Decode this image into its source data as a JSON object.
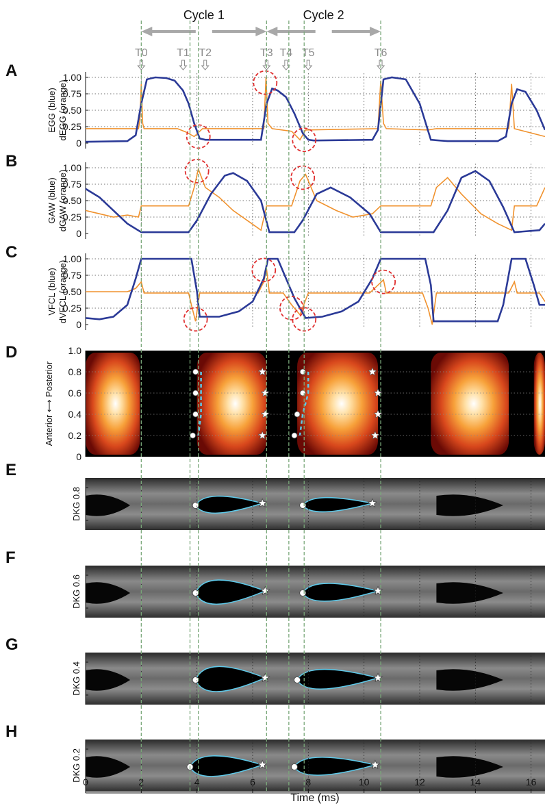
{
  "chart_data": {
    "type": "line",
    "xlabel": "Time (ms)",
    "x_ticks": [
      "0",
      "2",
      "4",
      "6",
      "8",
      "10",
      "12",
      "14",
      "16"
    ],
    "xlim": [
      0,
      16.5
    ],
    "cycles": [
      {
        "label": "Cycle 1",
        "from": 2.0,
        "to": 6.5
      },
      {
        "label": "Cycle 2",
        "from": 6.5,
        "to": 10.6
      }
    ],
    "time_markers": [
      {
        "label": "T0",
        "t": 2.0
      },
      {
        "label": "T1",
        "t": 3.75
      },
      {
        "label": "T2",
        "t": 4.05
      },
      {
        "label": "T3",
        "t": 6.5
      },
      {
        "label": "T4",
        "t": 7.3
      },
      {
        "label": "T5",
        "t": 7.85
      },
      {
        "label": "T6",
        "t": 10.6
      }
    ],
    "panels": [
      {
        "letter": "A",
        "ylabel_top": "EGG (blue)",
        "ylabel_bottom": "dEGG (orange)",
        "yticks": [
          "1.00",
          "0.75",
          "0.50",
          "0.25",
          "0"
        ],
        "ylim": [
          0,
          1
        ],
        "blue_colour": "#2b3a97",
        "orange_colour": "#f0922e",
        "blue": [
          [
            0,
            0.02
          ],
          [
            1.5,
            0.03
          ],
          [
            1.8,
            0.12
          ],
          [
            2.0,
            0.6
          ],
          [
            2.2,
            0.97
          ],
          [
            2.5,
            1.0
          ],
          [
            2.9,
            0.99
          ],
          [
            3.2,
            0.95
          ],
          [
            3.5,
            0.8
          ],
          [
            3.7,
            0.6
          ],
          [
            3.9,
            0.3
          ],
          [
            4.1,
            0.07
          ],
          [
            4.3,
            0.05
          ],
          [
            6.3,
            0.05
          ],
          [
            6.5,
            0.6
          ],
          [
            6.7,
            0.83
          ],
          [
            6.9,
            0.8
          ],
          [
            7.2,
            0.7
          ],
          [
            7.5,
            0.45
          ],
          [
            7.8,
            0.15
          ],
          [
            8.0,
            0.05
          ],
          [
            8.2,
            0.04
          ],
          [
            10.3,
            0.05
          ],
          [
            10.5,
            0.2
          ],
          [
            10.7,
            0.97
          ],
          [
            11.0,
            1.0
          ],
          [
            11.5,
            0.97
          ],
          [
            12.0,
            0.6
          ],
          [
            12.4,
            0.05
          ],
          [
            13.0,
            0.03
          ],
          [
            14.8,
            0.03
          ],
          [
            15.1,
            0.1
          ],
          [
            15.3,
            0.6
          ],
          [
            15.5,
            0.82
          ],
          [
            15.8,
            0.78
          ],
          [
            16.2,
            0.5
          ],
          [
            16.5,
            0.2
          ]
        ],
        "orange": [
          [
            0,
            0.22
          ],
          [
            1.9,
            0.22
          ],
          [
            1.95,
            0.35
          ],
          [
            2.0,
            0.9
          ],
          [
            2.05,
            0.3
          ],
          [
            2.1,
            0.22
          ],
          [
            3.3,
            0.22
          ],
          [
            3.6,
            0.17
          ],
          [
            3.9,
            0.1
          ],
          [
            4.2,
            0.22
          ],
          [
            6.4,
            0.22
          ],
          [
            6.48,
            1.0
          ],
          [
            6.55,
            0.3
          ],
          [
            6.7,
            0.22
          ],
          [
            7.4,
            0.18
          ],
          [
            7.7,
            0.05
          ],
          [
            7.9,
            0.2
          ],
          [
            10.5,
            0.22
          ],
          [
            10.6,
            0.95
          ],
          [
            10.7,
            0.3
          ],
          [
            10.8,
            0.22
          ],
          [
            12.3,
            0.2
          ],
          [
            12.6,
            0.22
          ],
          [
            15.2,
            0.22
          ],
          [
            15.3,
            0.9
          ],
          [
            15.4,
            0.22
          ],
          [
            16.5,
            0.1
          ]
        ],
        "highlights": [
          {
            "t": 4.05,
            "y": 0.1
          },
          {
            "t": 6.45,
            "y": 0.92
          },
          {
            "t": 7.85,
            "y": 0.05
          }
        ]
      },
      {
        "letter": "B",
        "ylabel_top": "GAW (blue)",
        "ylabel_bottom": "dGAW (orange)",
        "yticks": [
          "1.00",
          "0.75",
          "0.50",
          "0.25",
          "0"
        ],
        "ylim": [
          0,
          1
        ],
        "blue_colour": "#2b3a97",
        "orange_colour": "#f0922e",
        "blue": [
          [
            0,
            0.68
          ],
          [
            0.5,
            0.55
          ],
          [
            1.0,
            0.35
          ],
          [
            1.5,
            0.15
          ],
          [
            2.0,
            0.02
          ],
          [
            3.7,
            0.02
          ],
          [
            4.0,
            0.2
          ],
          [
            4.5,
            0.6
          ],
          [
            5.0,
            0.88
          ],
          [
            5.3,
            0.92
          ],
          [
            5.8,
            0.8
          ],
          [
            6.3,
            0.5
          ],
          [
            6.6,
            0.02
          ],
          [
            7.5,
            0.02
          ],
          [
            7.8,
            0.2
          ],
          [
            8.3,
            0.6
          ],
          [
            8.8,
            0.7
          ],
          [
            9.5,
            0.55
          ],
          [
            10.2,
            0.3
          ],
          [
            10.6,
            0.02
          ],
          [
            12.5,
            0.02
          ],
          [
            13.0,
            0.35
          ],
          [
            13.5,
            0.85
          ],
          [
            14.0,
            0.95
          ],
          [
            14.5,
            0.8
          ],
          [
            15.0,
            0.4
          ],
          [
            15.4,
            0.02
          ],
          [
            16.3,
            0.05
          ],
          [
            16.5,
            0.15
          ]
        ],
        "orange": [
          [
            0,
            0.35
          ],
          [
            0.5,
            0.3
          ],
          [
            1.0,
            0.25
          ],
          [
            1.5,
            0.28
          ],
          [
            1.9,
            0.25
          ],
          [
            2.0,
            0.42
          ],
          [
            3.7,
            0.42
          ],
          [
            3.9,
            0.7
          ],
          [
            4.05,
            0.98
          ],
          [
            4.3,
            0.7
          ],
          [
            4.8,
            0.55
          ],
          [
            5.3,
            0.35
          ],
          [
            5.8,
            0.2
          ],
          [
            6.3,
            0.05
          ],
          [
            6.5,
            0.42
          ],
          [
            7.4,
            0.42
          ],
          [
            7.7,
            0.8
          ],
          [
            7.9,
            0.9
          ],
          [
            8.3,
            0.5
          ],
          [
            9.0,
            0.35
          ],
          [
            9.6,
            0.25
          ],
          [
            10.3,
            0.3
          ],
          [
            10.6,
            0.42
          ],
          [
            12.4,
            0.42
          ],
          [
            12.6,
            0.7
          ],
          [
            13.0,
            0.85
          ],
          [
            13.5,
            0.6
          ],
          [
            14.2,
            0.3
          ],
          [
            14.8,
            0.15
          ],
          [
            15.3,
            0.05
          ],
          [
            15.4,
            0.42
          ],
          [
            16.2,
            0.42
          ],
          [
            16.5,
            0.7
          ]
        ],
        "highlights": [
          {
            "t": 4.0,
            "y": 0.95
          },
          {
            "t": 7.8,
            "y": 0.85
          }
        ]
      },
      {
        "letter": "C",
        "ylabel_top": "VFCL (blue)",
        "ylabel_bottom": "dVFCL (orange)",
        "yticks": [
          "1.00",
          "0.75",
          "0.50",
          "0.25",
          "0"
        ],
        "ylim": [
          0,
          1
        ],
        "blue_colour": "#2b3a97",
        "orange_colour": "#f0922e",
        "blue": [
          [
            0,
            0.1
          ],
          [
            0.5,
            0.08
          ],
          [
            1.0,
            0.12
          ],
          [
            1.5,
            0.3
          ],
          [
            1.8,
            0.7
          ],
          [
            2.0,
            1.0
          ],
          [
            3.8,
            1.0
          ],
          [
            4.0,
            0.5
          ],
          [
            4.1,
            0.12
          ],
          [
            4.8,
            0.12
          ],
          [
            5.5,
            0.2
          ],
          [
            6.0,
            0.35
          ],
          [
            6.4,
            0.7
          ],
          [
            6.55,
            1.0
          ],
          [
            6.9,
            1.0
          ],
          [
            7.2,
            0.7
          ],
          [
            7.5,
            0.4
          ],
          [
            7.9,
            0.1
          ],
          [
            8.5,
            0.12
          ],
          [
            9.2,
            0.2
          ],
          [
            9.8,
            0.35
          ],
          [
            10.3,
            0.7
          ],
          [
            10.6,
            1.0
          ],
          [
            12.2,
            1.0
          ],
          [
            12.4,
            0.6
          ],
          [
            12.5,
            0.05
          ],
          [
            14.8,
            0.05
          ],
          [
            15.0,
            0.3
          ],
          [
            15.3,
            1.0
          ],
          [
            15.8,
            1.0
          ],
          [
            16.1,
            0.6
          ],
          [
            16.3,
            0.3
          ],
          [
            16.5,
            0.3
          ]
        ],
        "orange": [
          [
            0,
            0.5
          ],
          [
            1.5,
            0.5
          ],
          [
            1.8,
            0.55
          ],
          [
            2.0,
            0.65
          ],
          [
            2.1,
            0.48
          ],
          [
            3.7,
            0.48
          ],
          [
            3.8,
            0.3
          ],
          [
            3.95,
            0.05
          ],
          [
            4.1,
            0.48
          ],
          [
            6.2,
            0.48
          ],
          [
            6.4,
            0.65
          ],
          [
            6.5,
            0.85
          ],
          [
            6.6,
            0.48
          ],
          [
            7.1,
            0.48
          ],
          [
            7.4,
            0.3
          ],
          [
            7.7,
            0.15
          ],
          [
            8.0,
            0.48
          ],
          [
            10.2,
            0.48
          ],
          [
            10.5,
            0.6
          ],
          [
            10.7,
            0.68
          ],
          [
            10.8,
            0.48
          ],
          [
            12.1,
            0.48
          ],
          [
            12.3,
            0.25
          ],
          [
            12.45,
            0.0
          ],
          [
            12.6,
            0.48
          ],
          [
            15.2,
            0.48
          ],
          [
            15.4,
            0.65
          ],
          [
            15.5,
            0.48
          ],
          [
            16.3,
            0.48
          ],
          [
            16.5,
            0.35
          ]
        ],
        "highlights": [
          {
            "t": 3.95,
            "y": 0.08
          },
          {
            "t": 6.4,
            "y": 0.83
          },
          {
            "t": 7.4,
            "y": 0.25
          },
          {
            "t": 7.85,
            "y": 0.08
          },
          {
            "t": 10.7,
            "y": 0.65
          }
        ]
      }
    ],
    "panel_D": {
      "letter": "D",
      "ylabel": "Anterior ⟷ Posterior",
      "yticks": [
        "1.0",
        "0.8",
        "0.6",
        "0.4",
        "0.2",
        "0"
      ],
      "heat_blobs": [
        {
          "t_from": 0.0,
          "t_to": 1.95,
          "peak": 0.4
        },
        {
          "t_from": 4.0,
          "t_to": 6.5,
          "peak": 5.2
        },
        {
          "t_from": 7.6,
          "t_to": 10.5,
          "peak": 8.4
        },
        {
          "t_from": 12.4,
          "t_to": 15.2,
          "peak": 13.7
        },
        {
          "t_from": 16.1,
          "t_to": 16.5,
          "peak": 16.5
        }
      ],
      "open_markers": [
        [
          3.95,
          0.8
        ],
        [
          3.95,
          0.6
        ],
        [
          3.95,
          0.4
        ],
        [
          3.85,
          0.2
        ],
        [
          7.8,
          0.8
        ],
        [
          7.8,
          0.6
        ],
        [
          7.6,
          0.4
        ],
        [
          7.5,
          0.2
        ]
      ],
      "star_markers": [
        [
          6.35,
          0.8
        ],
        [
          6.45,
          0.6
        ],
        [
          6.45,
          0.4
        ],
        [
          6.35,
          0.2
        ],
        [
          10.3,
          0.8
        ],
        [
          10.5,
          0.6
        ],
        [
          10.5,
          0.4
        ],
        [
          10.4,
          0.2
        ]
      ]
    },
    "dkg_panels": [
      {
        "letter": "E",
        "label": "DKG 0.8",
        "openings": [
          {
            "t_open": 3.95,
            "t_close": 6.35,
            "size": 0.55
          },
          {
            "t_open": 7.8,
            "t_close": 10.3,
            "size": 0.4
          }
        ],
        "dark_blobs": [
          {
            "t_from": 0.0,
            "t_to": 1.6
          },
          {
            "t_from": 12.6,
            "t_to": 15.0
          }
        ]
      },
      {
        "letter": "F",
        "label": "DKG 0.6",
        "openings": [
          {
            "t_open": 3.95,
            "t_close": 6.45,
            "size": 0.95
          },
          {
            "t_open": 7.8,
            "t_close": 10.5,
            "size": 0.6
          }
        ],
        "dark_blobs": [
          {
            "t_from": 0.0,
            "t_to": 1.6
          },
          {
            "t_from": 12.6,
            "t_to": 15.0
          }
        ]
      },
      {
        "letter": "G",
        "label": "DKG 0.4",
        "openings": [
          {
            "t_open": 3.95,
            "t_close": 6.45,
            "size": 1.0
          },
          {
            "t_open": 7.6,
            "t_close": 10.5,
            "size": 0.7
          }
        ],
        "dark_blobs": [
          {
            "t_from": 0.0,
            "t_to": 1.6
          },
          {
            "t_from": 12.6,
            "t_to": 15.0
          }
        ]
      },
      {
        "letter": "H",
        "label": "DKG 0.2",
        "openings": [
          {
            "t_open": 3.75,
            "t_close": 6.35,
            "size": 0.75
          },
          {
            "t_open": 7.5,
            "t_close": 10.4,
            "size": 0.6
          }
        ],
        "dark_blobs": [
          {
            "t_from": 0.0,
            "t_to": 1.6
          },
          {
            "t_from": 12.6,
            "t_to": 15.0
          }
        ]
      }
    ],
    "colors": {
      "blue_line": "#2b3a97",
      "orange_line": "#f0922e",
      "marker_line": "#7aa87a",
      "highlight": "#e03030",
      "contour": "#5ec8e8",
      "label_gray": "#8a8a8a"
    }
  }
}
